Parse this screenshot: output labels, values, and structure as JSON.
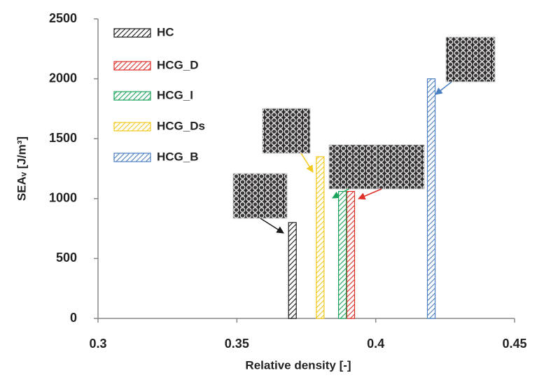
{
  "chart_data": {
    "type": "bar",
    "xlabel": "Relative density [-]",
    "ylabel": "SEAᵥ [J/m³]",
    "xlim": [
      0.3,
      0.45
    ],
    "xticks": [
      0.3,
      0.35,
      0.4,
      0.45
    ],
    "ylim": [
      0,
      2500
    ],
    "yticks": [
      0,
      500,
      1000,
      1500,
      2000,
      2500
    ],
    "legend": "upper left",
    "series": [
      {
        "name": "HC",
        "color": "#1a1a1a",
        "x": [
          0.37
        ],
        "values": [
          800
        ]
      },
      {
        "name": "HCG_D",
        "color": "#e0302a",
        "x": [
          0.391
        ],
        "values": [
          1060
        ]
      },
      {
        "name": "HCG_I",
        "color": "#1aa35a",
        "x": [
          0.388
        ],
        "values": [
          1060
        ]
      },
      {
        "name": "HCG_Ds",
        "color": "#f2c81e",
        "x": [
          0.38
        ],
        "values": [
          1350
        ]
      },
      {
        "name": "HCG_B",
        "color": "#4a7fc1",
        "x": [
          0.42
        ],
        "values": [
          2000
        ]
      }
    ]
  }
}
